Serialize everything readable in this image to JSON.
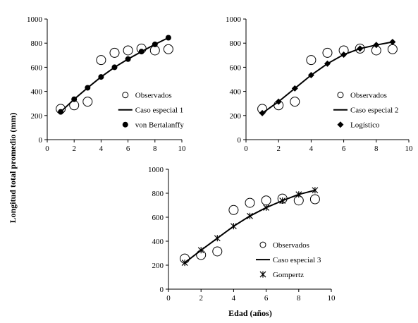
{
  "figure": {
    "ylabel": "Longitud total promedio (mm)",
    "xlabel": "Edad (años)"
  },
  "chart_data": [
    {
      "type": "scatter",
      "x": [
        1,
        2,
        3,
        4,
        5,
        6,
        7,
        8,
        9
      ],
      "xlim": [
        0,
        10
      ],
      "ylim": [
        0,
        1000
      ],
      "xticks": [
        0,
        2,
        4,
        6,
        8,
        10
      ],
      "yticks": [
        0,
        200,
        400,
        600,
        800,
        1000
      ],
      "legend_position": "bottom-right",
      "grid": false,
      "series": [
        {
          "name": "Observados",
          "marker": "open-circle",
          "values": [
            255,
            285,
            315,
            660,
            720,
            740,
            755,
            740,
            750
          ]
        },
        {
          "name": "Caso especial 1",
          "marker": "line",
          "values": [
            230,
            335,
            430,
            520,
            600,
            668,
            730,
            790,
            845
          ]
        },
        {
          "name": "von Bertalanffy",
          "marker": "filled-circle",
          "values": [
            230,
            335,
            430,
            520,
            600,
            668,
            730,
            790,
            845
          ]
        }
      ]
    },
    {
      "type": "scatter",
      "x": [
        1,
        2,
        3,
        4,
        5,
        6,
        7,
        8,
        9
      ],
      "xlim": [
        0,
        10
      ],
      "ylim": [
        0,
        1000
      ],
      "xticks": [
        0,
        2,
        4,
        6,
        8,
        10
      ],
      "yticks": [
        0,
        200,
        400,
        600,
        800,
        1000
      ],
      "legend_position": "bottom-right",
      "grid": false,
      "series": [
        {
          "name": "Observados",
          "marker": "open-circle",
          "values": [
            255,
            285,
            315,
            660,
            720,
            740,
            755,
            740,
            750
          ]
        },
        {
          "name": "Caso especial 2",
          "marker": "line",
          "values": [
            220,
            315,
            425,
            535,
            630,
            705,
            755,
            785,
            810
          ]
        },
        {
          "name": "Logístico",
          "marker": "diamond",
          "values": [
            220,
            315,
            425,
            535,
            630,
            705,
            755,
            785,
            810
          ]
        }
      ]
    },
    {
      "type": "scatter",
      "x": [
        1,
        2,
        3,
        4,
        5,
        6,
        7,
        8,
        9
      ],
      "xlim": [
        0,
        10
      ],
      "ylim": [
        0,
        1000
      ],
      "xticks": [
        0,
        2,
        4,
        6,
        8,
        10
      ],
      "yticks": [
        0,
        200,
        400,
        600,
        800,
        1000
      ],
      "legend_position": "bottom-right",
      "grid": false,
      "series": [
        {
          "name": "Observados",
          "marker": "open-circle",
          "values": [
            255,
            285,
            315,
            660,
            720,
            740,
            755,
            740,
            750
          ]
        },
        {
          "name": "Caso especial 3",
          "marker": "line",
          "values": [
            220,
            325,
            425,
            525,
            610,
            680,
            738,
            790,
            825
          ]
        },
        {
          "name": "Gompertz",
          "marker": "asterisk",
          "values": [
            220,
            325,
            425,
            525,
            610,
            680,
            738,
            790,
            825
          ]
        }
      ]
    }
  ]
}
